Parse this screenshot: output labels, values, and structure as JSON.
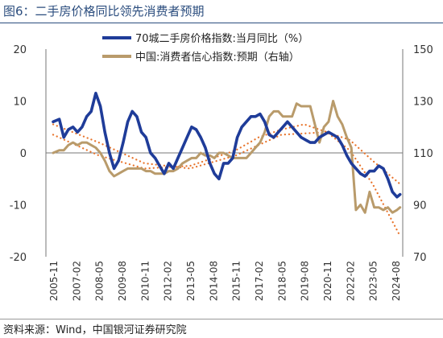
{
  "figure": {
    "title": "图6：二手房价格同比领先消费者预期",
    "source": "资料来源：Wind，中国银河证券研究院"
  },
  "chart_data": {
    "type": "line",
    "title": "图6：二手房价格同比领先消费者预期",
    "x_ticks": [
      "2005-11",
      "2007-02",
      "2008-05",
      "2009-08",
      "2010-11",
      "2012-02",
      "2013-05",
      "2014-08",
      "2015-11",
      "2017-02",
      "2018-05",
      "2019-08",
      "2020-11",
      "2022-02",
      "2023-05",
      "2024-08"
    ],
    "y_left": {
      "range": [
        -20,
        20
      ],
      "ticks": [
        -20,
        -10,
        0,
        10,
        20
      ]
    },
    "y_right": {
      "range": [
        70,
        150
      ],
      "ticks": [
        70,
        90,
        110,
        130,
        150
      ]
    },
    "legend_position": "top",
    "grid": false,
    "colors": {
      "price": "#1f3c99",
      "confidence": "#b99b6b",
      "trend": "#e8732a",
      "title": "#2b4d7e"
    },
    "series": [
      {
        "name": "70城二手房价格指数:当月同比（%）",
        "axis": "left",
        "style": "solid",
        "points": [
          [
            "2005-11",
            6
          ],
          [
            "2006-03",
            6.5
          ],
          [
            "2006-06",
            3
          ],
          [
            "2006-09",
            4.5
          ],
          [
            "2006-12",
            5
          ],
          [
            "2007-03",
            4
          ],
          [
            "2007-06",
            5
          ],
          [
            "2007-09",
            7
          ],
          [
            "2007-12",
            8
          ],
          [
            "2008-03",
            11.5
          ],
          [
            "2008-06",
            9
          ],
          [
            "2008-09",
            4
          ],
          [
            "2008-12",
            0
          ],
          [
            "2009-03",
            -3
          ],
          [
            "2009-06",
            -1.5
          ],
          [
            "2009-09",
            2
          ],
          [
            "2009-12",
            6
          ],
          [
            "2010-03",
            8
          ],
          [
            "2010-06",
            7
          ],
          [
            "2010-09",
            4
          ],
          [
            "2010-12",
            3
          ],
          [
            "2011-03",
            0
          ],
          [
            "2011-06",
            -1
          ],
          [
            "2011-09",
            -2.5
          ],
          [
            "2011-12",
            -4
          ],
          [
            "2012-03",
            -2
          ],
          [
            "2012-06",
            -3
          ],
          [
            "2012-09",
            -1
          ],
          [
            "2012-12",
            1
          ],
          [
            "2013-03",
            3
          ],
          [
            "2013-06",
            5
          ],
          [
            "2013-09",
            4.5
          ],
          [
            "2013-12",
            3
          ],
          [
            "2014-03",
            1
          ],
          [
            "2014-06",
            -2
          ],
          [
            "2014-09",
            -4
          ],
          [
            "2014-12",
            -5
          ],
          [
            "2015-03",
            -2
          ],
          [
            "2015-06",
            -2
          ],
          [
            "2015-09",
            -1
          ],
          [
            "2015-12",
            3
          ],
          [
            "2016-03",
            5
          ],
          [
            "2016-06",
            6
          ],
          [
            "2016-09",
            7
          ],
          [
            "2016-12",
            7
          ],
          [
            "2017-03",
            7.5
          ],
          [
            "2017-06",
            6
          ],
          [
            "2017-09",
            3.5
          ],
          [
            "2017-12",
            3
          ],
          [
            "2018-03",
            4
          ],
          [
            "2018-06",
            5
          ],
          [
            "2018-09",
            6
          ],
          [
            "2018-12",
            5
          ],
          [
            "2019-03",
            4
          ],
          [
            "2019-06",
            3
          ],
          [
            "2019-09",
            2.5
          ],
          [
            "2019-12",
            2
          ],
          [
            "2020-03",
            2
          ],
          [
            "2020-06",
            3
          ],
          [
            "2020-09",
            3.5
          ],
          [
            "2020-12",
            4
          ],
          [
            "2021-03",
            3.5
          ],
          [
            "2021-06",
            3
          ],
          [
            "2021-09",
            1.5
          ],
          [
            "2021-12",
            -0.5
          ],
          [
            "2022-03",
            -2
          ],
          [
            "2022-06",
            -3
          ],
          [
            "2022-09",
            -4
          ],
          [
            "2022-12",
            -4.5
          ],
          [
            "2023-03",
            -3.5
          ],
          [
            "2023-06",
            -3.5
          ],
          [
            "2023-09",
            -2.5
          ],
          [
            "2023-12",
            -3
          ],
          [
            "2024-03",
            -5
          ],
          [
            "2024-06",
            -7.5
          ],
          [
            "2024-09",
            -8.5
          ],
          [
            "2024-11",
            -8
          ]
        ]
      },
      {
        "name": "中国:消费者信心指数:预期（右轴）",
        "axis": "right",
        "style": "solid",
        "points": [
          [
            "2005-11",
            110
          ],
          [
            "2006-03",
            111
          ],
          [
            "2006-06",
            111
          ],
          [
            "2006-09",
            113
          ],
          [
            "2006-12",
            114
          ],
          [
            "2007-03",
            113
          ],
          [
            "2007-06",
            114
          ],
          [
            "2007-09",
            114
          ],
          [
            "2007-12",
            113
          ],
          [
            "2008-03",
            112
          ],
          [
            "2008-06",
            110
          ],
          [
            "2008-09",
            107
          ],
          [
            "2008-12",
            103
          ],
          [
            "2009-03",
            101
          ],
          [
            "2009-06",
            102
          ],
          [
            "2009-09",
            103
          ],
          [
            "2009-12",
            104
          ],
          [
            "2010-03",
            104
          ],
          [
            "2010-06",
            104
          ],
          [
            "2010-09",
            104
          ],
          [
            "2010-12",
            103
          ],
          [
            "2011-03",
            103
          ],
          [
            "2011-06",
            102
          ],
          [
            "2011-09",
            102
          ],
          [
            "2011-12",
            102
          ],
          [
            "2012-03",
            103
          ],
          [
            "2012-06",
            103
          ],
          [
            "2012-09",
            104
          ],
          [
            "2012-12",
            106
          ],
          [
            "2013-03",
            107
          ],
          [
            "2013-06",
            108
          ],
          [
            "2013-09",
            108
          ],
          [
            "2013-12",
            110
          ],
          [
            "2014-03",
            109
          ],
          [
            "2014-06",
            109
          ],
          [
            "2014-09",
            108
          ],
          [
            "2014-12",
            110
          ],
          [
            "2015-03",
            110
          ],
          [
            "2015-06",
            109
          ],
          [
            "2015-09",
            108
          ],
          [
            "2015-12",
            108
          ],
          [
            "2016-03",
            108
          ],
          [
            "2016-06",
            108
          ],
          [
            "2016-09",
            110
          ],
          [
            "2016-12",
            112
          ],
          [
            "2017-03",
            114
          ],
          [
            "2017-06",
            118
          ],
          [
            "2017-09",
            124
          ],
          [
            "2017-12",
            126
          ],
          [
            "2018-03",
            126
          ],
          [
            "2018-06",
            124
          ],
          [
            "2018-09",
            124
          ],
          [
            "2018-12",
            124
          ],
          [
            "2019-03",
            129
          ],
          [
            "2019-06",
            128
          ],
          [
            "2019-09",
            128
          ],
          [
            "2019-12",
            128
          ],
          [
            "2020-03",
            121
          ],
          [
            "2020-06",
            114
          ],
          [
            "2020-09",
            120
          ],
          [
            "2020-12",
            122
          ],
          [
            "2021-03",
            130
          ],
          [
            "2021-06",
            124
          ],
          [
            "2021-09",
            121
          ],
          [
            "2021-12",
            116
          ],
          [
            "2022-03",
            112
          ],
          [
            "2022-06",
            88
          ],
          [
            "2022-09",
            90
          ],
          [
            "2022-12",
            87
          ],
          [
            "2023-03",
            95
          ],
          [
            "2023-06",
            89
          ],
          [
            "2023-09",
            89
          ],
          [
            "2023-12",
            88
          ],
          [
            "2024-03",
            89
          ],
          [
            "2024-06",
            87
          ],
          [
            "2024-09",
            88
          ],
          [
            "2024-11",
            89
          ]
        ]
      },
      {
        "axis": "left",
        "style": "dotted",
        "trend_of": "70城二手房价格指数:当月同比（%）",
        "points": [
          [
            "2005-11",
            5.5
          ],
          [
            "2008-05",
            2
          ],
          [
            "2010-11",
            -2
          ],
          [
            "2013-05",
            -3
          ],
          [
            "2015-11",
            -0.5
          ],
          [
            "2018-05",
            3.5
          ],
          [
            "2020-11",
            4
          ],
          [
            "2022-02",
            2.5
          ],
          [
            "2023-05",
            -1.5
          ],
          [
            "2024-11",
            -6
          ]
        ]
      },
      {
        "axis": "right",
        "style": "dotted",
        "trend_of": "中国:消费者信心指数:预期（右轴）",
        "points": [
          [
            "2005-11",
            117
          ],
          [
            "2008-05",
            109
          ],
          [
            "2010-11",
            104
          ],
          [
            "2013-05",
            105
          ],
          [
            "2015-11",
            111
          ],
          [
            "2017-02",
            116
          ],
          [
            "2018-05",
            119
          ],
          [
            "2019-08",
            121
          ],
          [
            "2020-11",
            118
          ],
          [
            "2022-02",
            111
          ],
          [
            "2023-05",
            98
          ],
          [
            "2024-11",
            78
          ]
        ]
      }
    ]
  }
}
